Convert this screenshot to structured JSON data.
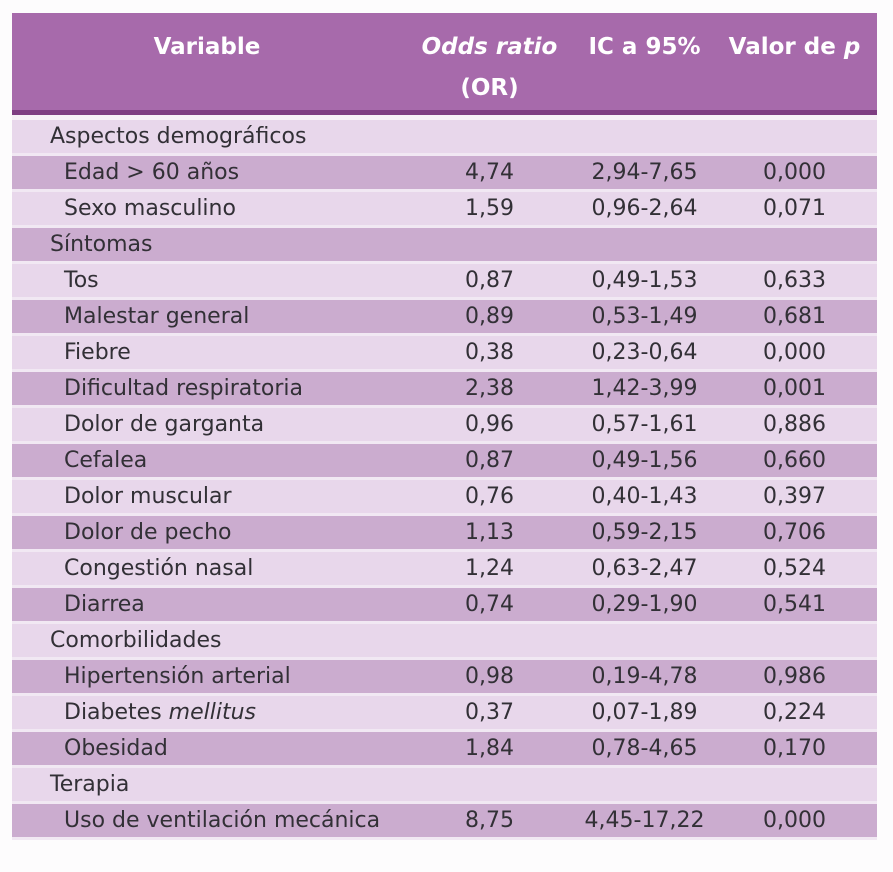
{
  "chart_data": {
    "type": "table",
    "columns": [
      "Variable",
      "Odds ratio (OR)",
      "IC a 95%",
      "Valor de p"
    ],
    "rows": [
      {
        "section": true,
        "label": "Aspectos demográficos"
      },
      {
        "label": "Edad > 60 años",
        "or": "4,74",
        "ic": "2,94-7,65",
        "p": "0,000"
      },
      {
        "label": "Sexo masculino",
        "or": "1,59",
        "ic": "0,96-2,64",
        "p": "0,071"
      },
      {
        "section": true,
        "label": "Síntomas"
      },
      {
        "label": "Tos",
        "or": "0,87",
        "ic": "0,49-1,53",
        "p": "0,633"
      },
      {
        "label": "Malestar general",
        "or": "0,89",
        "ic": "0,53-1,49",
        "p": "0,681"
      },
      {
        "label": "Fiebre",
        "or": "0,38",
        "ic": "0,23-0,64",
        "p": "0,000"
      },
      {
        "label": "Dificultad respiratoria",
        "or": "2,38",
        "ic": "1,42-3,99",
        "p": "0,001"
      },
      {
        "label": "Dolor de garganta",
        "or": "0,96",
        "ic": "0,57-1,61",
        "p": "0,886"
      },
      {
        "label": "Cefalea",
        "or": "0,87",
        "ic": "0,49-1,56",
        "p": "0,660"
      },
      {
        "label": "Dolor muscular",
        "or": "0,76",
        "ic": "0,40-1,43",
        "p": "0,397"
      },
      {
        "label": "Dolor de pecho",
        "or": "1,13",
        "ic": "0,59-2,15",
        "p": "0,706"
      },
      {
        "label": "Congestión nasal",
        "or": "1,24",
        "ic": "0,63-2,47",
        "p": "0,524"
      },
      {
        "label": "Diarrea",
        "or": "0,74",
        "ic": "0,29-1,90",
        "p": "0,541"
      },
      {
        "section": true,
        "label": "Comorbilidades"
      },
      {
        "label": "Hipertensión arterial",
        "or": "0,98",
        "ic": "0,19-4,78",
        "p": "0,986"
      },
      {
        "label": "Diabetes ",
        "label_italic": "mellitus",
        "or": "0,37",
        "ic": "0,07-1,89",
        "p": "0,224"
      },
      {
        "label": "Obesidad",
        "or": "1,84",
        "ic": "0,78-4,65",
        "p": "0,170"
      },
      {
        "section": true,
        "label": "Terapia"
      },
      {
        "label": "Uso de ventilación mecánica",
        "or": "8,75",
        "ic": "4,45-17,22",
        "p": "0,000"
      }
    ]
  },
  "header": {
    "variable": "Variable",
    "or_line1": "Odds ratio",
    "or_line2": "(OR)",
    "ic": "IC a 95%",
    "p_prefix": "Valor de",
    "p_italic": "p"
  },
  "colors": {
    "header_bg": "#a76aab",
    "header_border": "#7e3d82",
    "row_light": "#e8d7eb",
    "row_dark": "#cbaccf",
    "separator": "#f1e8f3",
    "text": "#323036",
    "header_text": "#ffffff",
    "page_bg": "#fdfcfd"
  }
}
